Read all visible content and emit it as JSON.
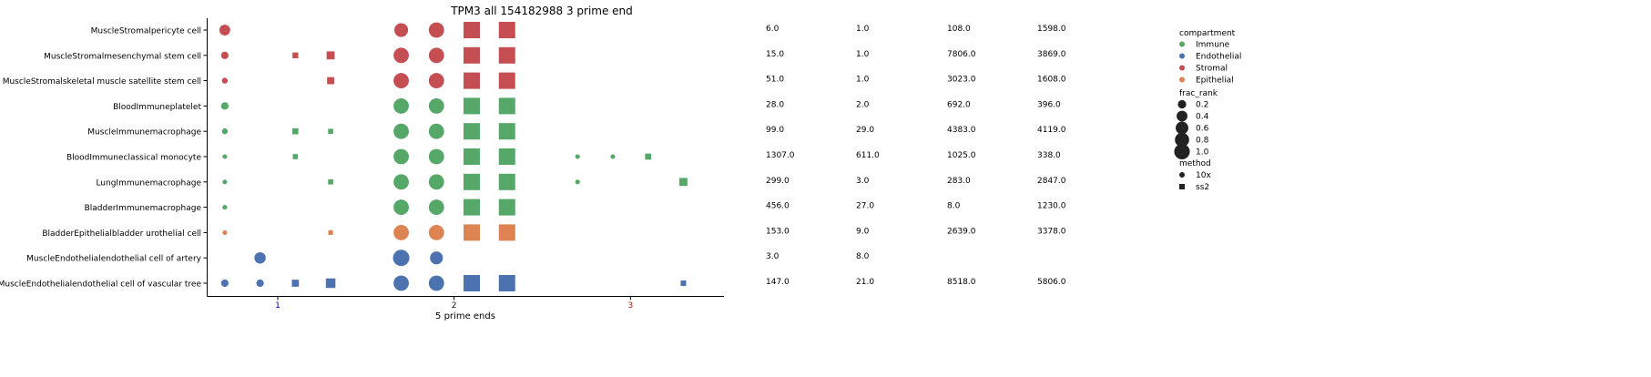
{
  "chart_data": {
    "type": "scatter",
    "title": "TPM3 all 154182988 3 prime end",
    "xlabel": "5 prime ends",
    "ylabel": "",
    "xlim": [
      0.6,
      3.53
    ],
    "xticks": [
      {
        "value": 1,
        "label": "1",
        "color": "#0000cc"
      },
      {
        "value": 2,
        "label": "2",
        "color": "#111111"
      },
      {
        "value": 3,
        "label": "3",
        "color": "#dd0000"
      }
    ],
    "categories": [
      "MuscleStromalpericyte cell",
      "MuscleStromalmesenchymal stem cell",
      "MuscleStromalskeletal muscle satellite stem cell",
      "BloodImmuneplatelet",
      "MuscleImmunemacrophage",
      "BloodImmuneclassical monocyte",
      "LungImmunemacrophage",
      "BladderImmunemacrophage",
      "BladderEpithelialbladder urothelial cell",
      "MuscleEndothelialendothelial cell of artery",
      "MuscleEndothelialendothelial cell of vascular tree"
    ],
    "compartment_colors": {
      "Immune": "#55a868",
      "Endothelial": "#4c72b0",
      "Stromal": "#c44e52",
      "Epithelial": "#dd8452"
    },
    "rows": [
      {
        "compartment": "Stromal",
        "points": [
          {
            "x": 0.7,
            "frac_rank": 0.35,
            "method": "10x"
          },
          {
            "x": 1.7,
            "frac_rank": 0.65,
            "method": "10x"
          },
          {
            "x": 1.9,
            "frac_rank": 0.85,
            "method": "10x"
          },
          {
            "x": 2.1,
            "frac_rank": 1.0,
            "method": "ss2"
          },
          {
            "x": 2.3,
            "frac_rank": 1.0,
            "method": "ss2"
          }
        ]
      },
      {
        "compartment": "Stromal",
        "points": [
          {
            "x": 0.7,
            "frac_rank": 0.12,
            "method": "10x"
          },
          {
            "x": 1.1,
            "frac_rank": 0.05,
            "method": "ss2"
          },
          {
            "x": 1.3,
            "frac_rank": 0.15,
            "method": "ss2"
          },
          {
            "x": 1.7,
            "frac_rank": 0.85,
            "method": "10x"
          },
          {
            "x": 1.9,
            "frac_rank": 0.85,
            "method": "10x"
          },
          {
            "x": 2.1,
            "frac_rank": 1.0,
            "method": "ss2"
          },
          {
            "x": 2.3,
            "frac_rank": 1.0,
            "method": "ss2"
          }
        ]
      },
      {
        "compartment": "Stromal",
        "points": [
          {
            "x": 0.7,
            "frac_rank": 0.05,
            "method": "10x"
          },
          {
            "x": 1.3,
            "frac_rank": 0.1,
            "method": "ss2"
          },
          {
            "x": 1.7,
            "frac_rank": 0.85,
            "method": "10x"
          },
          {
            "x": 1.9,
            "frac_rank": 0.85,
            "method": "10x"
          },
          {
            "x": 2.1,
            "frac_rank": 1.0,
            "method": "ss2"
          },
          {
            "x": 2.3,
            "frac_rank": 1.0,
            "method": "ss2"
          }
        ]
      },
      {
        "compartment": "Immune",
        "points": [
          {
            "x": 0.7,
            "frac_rank": 0.12,
            "method": "10x"
          },
          {
            "x": 1.7,
            "frac_rank": 0.85,
            "method": "10x"
          },
          {
            "x": 1.9,
            "frac_rank": 0.85,
            "method": "10x"
          },
          {
            "x": 2.1,
            "frac_rank": 1.0,
            "method": "ss2"
          },
          {
            "x": 2.3,
            "frac_rank": 1.0,
            "method": "ss2"
          }
        ]
      },
      {
        "compartment": "Immune",
        "points": [
          {
            "x": 0.7,
            "frac_rank": 0.05,
            "method": "10x"
          },
          {
            "x": 1.1,
            "frac_rank": 0.06,
            "method": "ss2"
          },
          {
            "x": 1.3,
            "frac_rank": 0.03,
            "method": "ss2"
          },
          {
            "x": 1.7,
            "frac_rank": 0.85,
            "method": "10x"
          },
          {
            "x": 1.9,
            "frac_rank": 0.85,
            "method": "10x"
          },
          {
            "x": 2.1,
            "frac_rank": 1.0,
            "method": "ss2"
          },
          {
            "x": 2.3,
            "frac_rank": 1.0,
            "method": "ss2"
          }
        ]
      },
      {
        "compartment": "Immune",
        "points": [
          {
            "x": 0.7,
            "frac_rank": 0.02,
            "method": "10x"
          },
          {
            "x": 1.1,
            "frac_rank": 0.03,
            "method": "ss2"
          },
          {
            "x": 1.7,
            "frac_rank": 0.85,
            "method": "10x"
          },
          {
            "x": 1.9,
            "frac_rank": 0.85,
            "method": "10x"
          },
          {
            "x": 2.1,
            "frac_rank": 1.0,
            "method": "ss2"
          },
          {
            "x": 2.3,
            "frac_rank": 1.0,
            "method": "ss2"
          },
          {
            "x": 2.7,
            "frac_rank": 0.02,
            "method": "10x"
          },
          {
            "x": 2.9,
            "frac_rank": 0.02,
            "method": "10x"
          },
          {
            "x": 3.1,
            "frac_rank": 0.06,
            "method": "ss2"
          }
        ]
      },
      {
        "compartment": "Immune",
        "points": [
          {
            "x": 0.7,
            "frac_rank": 0.02,
            "method": "10x"
          },
          {
            "x": 1.3,
            "frac_rank": 0.03,
            "method": "ss2"
          },
          {
            "x": 1.7,
            "frac_rank": 0.85,
            "method": "10x"
          },
          {
            "x": 1.9,
            "frac_rank": 0.85,
            "method": "10x"
          },
          {
            "x": 2.1,
            "frac_rank": 1.0,
            "method": "ss2"
          },
          {
            "x": 2.3,
            "frac_rank": 1.0,
            "method": "ss2"
          },
          {
            "x": 2.7,
            "frac_rank": 0.02,
            "method": "10x"
          },
          {
            "x": 3.3,
            "frac_rank": 0.15,
            "method": "ss2"
          }
        ]
      },
      {
        "compartment": "Immune",
        "points": [
          {
            "x": 0.7,
            "frac_rank": 0.02,
            "method": "10x"
          },
          {
            "x": 1.7,
            "frac_rank": 0.85,
            "method": "10x"
          },
          {
            "x": 1.9,
            "frac_rank": 0.85,
            "method": "10x"
          },
          {
            "x": 2.1,
            "frac_rank": 1.0,
            "method": "ss2"
          },
          {
            "x": 2.3,
            "frac_rank": 1.0,
            "method": "ss2"
          }
        ]
      },
      {
        "compartment": "Epithelial",
        "points": [
          {
            "x": 0.7,
            "frac_rank": 0.02,
            "method": "10x"
          },
          {
            "x": 1.3,
            "frac_rank": 0.02,
            "method": "ss2"
          },
          {
            "x": 1.7,
            "frac_rank": 0.85,
            "method": "10x"
          },
          {
            "x": 1.9,
            "frac_rank": 0.85,
            "method": "10x"
          },
          {
            "x": 2.1,
            "frac_rank": 1.0,
            "method": "ss2"
          },
          {
            "x": 2.3,
            "frac_rank": 1.0,
            "method": "ss2"
          }
        ]
      },
      {
        "compartment": "Endothelial",
        "points": [
          {
            "x": 0.9,
            "frac_rank": 0.4,
            "method": "10x"
          },
          {
            "x": 1.7,
            "frac_rank": 1.0,
            "method": "10x"
          },
          {
            "x": 1.9,
            "frac_rank": 0.55,
            "method": "10x"
          }
        ]
      },
      {
        "compartment": "Endothelial",
        "points": [
          {
            "x": 0.7,
            "frac_rank": 0.12,
            "method": "10x"
          },
          {
            "x": 0.9,
            "frac_rank": 0.12,
            "method": "10x"
          },
          {
            "x": 1.1,
            "frac_rank": 0.1,
            "method": "ss2"
          },
          {
            "x": 1.3,
            "frac_rank": 0.25,
            "method": "ss2"
          },
          {
            "x": 1.7,
            "frac_rank": 0.85,
            "method": "10x"
          },
          {
            "x": 1.9,
            "frac_rank": 0.85,
            "method": "10x"
          },
          {
            "x": 2.1,
            "frac_rank": 1.0,
            "method": "ss2"
          },
          {
            "x": 2.3,
            "frac_rank": 1.0,
            "method": "ss2"
          },
          {
            "x": 3.3,
            "frac_rank": 0.04,
            "method": "ss2"
          }
        ]
      }
    ],
    "table": [
      [
        "6.0",
        "1.0",
        "108.0",
        "1598.0"
      ],
      [
        "15.0",
        "1.0",
        "7806.0",
        "3869.0"
      ],
      [
        "51.0",
        "1.0",
        "3023.0",
        "1608.0"
      ],
      [
        "28.0",
        "2.0",
        "692.0",
        "396.0"
      ],
      [
        "99.0",
        "29.0",
        "4383.0",
        "4119.0"
      ],
      [
        "1307.0",
        "611.0",
        "1025.0",
        "338.0"
      ],
      [
        "299.0",
        "3.0",
        "283.0",
        "2847.0"
      ],
      [
        "456.0",
        "27.0",
        "8.0",
        "1230.0"
      ],
      [
        "153.0",
        "9.0",
        "2639.0",
        "3378.0"
      ],
      [
        "3.0",
        "8.0",
        "",
        ""
      ],
      [
        "147.0",
        "21.0",
        "8518.0",
        "5806.0"
      ]
    ],
    "legend": {
      "placement": "right",
      "compartment_title": "compartment",
      "compartments": [
        "Immune",
        "Endothelial",
        "Stromal",
        "Epithelial"
      ],
      "size_title": "frac_rank",
      "sizes": [
        {
          "label": "0.2",
          "value": 0.2
        },
        {
          "label": "0.4",
          "value": 0.4
        },
        {
          "label": "0.6",
          "value": 0.6
        },
        {
          "label": "0.8",
          "value": 0.8
        },
        {
          "label": "1.0",
          "value": 1.0
        }
      ],
      "method_title": "method",
      "methods": [
        {
          "label": "10x",
          "marker": "circle"
        },
        {
          "label": "ss2",
          "marker": "square"
        }
      ]
    }
  }
}
